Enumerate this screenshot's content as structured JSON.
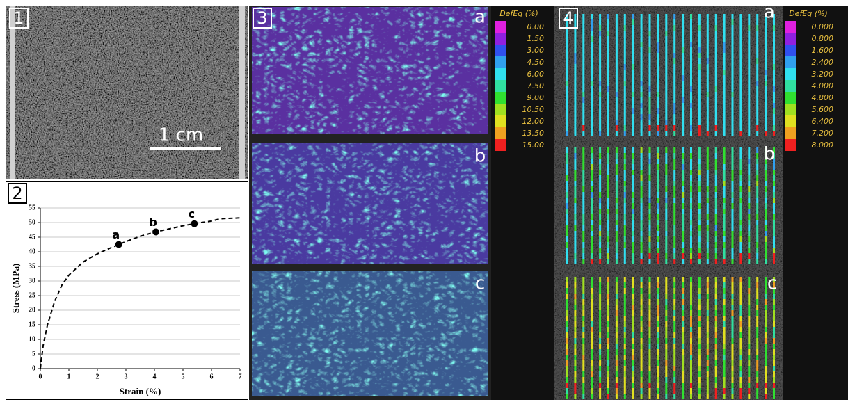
{
  "panel_labels": [
    "1",
    "2",
    "3",
    "4"
  ],
  "scale_bar": "1 cm",
  "panel3_labels": [
    "a",
    "b",
    "c"
  ],
  "panel4_labels": [
    "a",
    "b",
    "c"
  ],
  "legend3": {
    "title": "DefEq (%)",
    "entries": [
      {
        "label": "0.00",
        "color": "#e020e0"
      },
      {
        "label": "1.50",
        "color": "#9020e0"
      },
      {
        "label": "3.00",
        "color": "#3050f0"
      },
      {
        "label": "4.50",
        "color": "#30a0f0"
      },
      {
        "label": "6.00",
        "color": "#30e0f0"
      },
      {
        "label": "7.50",
        "color": "#30e0a0"
      },
      {
        "label": "9.00",
        "color": "#30e030"
      },
      {
        "label": "10.50",
        "color": "#a0e020"
      },
      {
        "label": "12.00",
        "color": "#e0e020"
      },
      {
        "label": "13.50",
        "color": "#f0a020"
      },
      {
        "label": "15.00",
        "color": "#f02020"
      }
    ]
  },
  "legend4": {
    "title": "DefEq (%)",
    "entries": [
      {
        "label": "0.000",
        "color": "#e020e0"
      },
      {
        "label": "0.800",
        "color": "#9020e0"
      },
      {
        "label": "1.600",
        "color": "#3050f0"
      },
      {
        "label": "2.400",
        "color": "#30a0f0"
      },
      {
        "label": "3.200",
        "color": "#30e0f0"
      },
      {
        "label": "4.000",
        "color": "#30e0a0"
      },
      {
        "label": "4.800",
        "color": "#30e030"
      },
      {
        "label": "5.600",
        "color": "#a0e020"
      },
      {
        "label": "6.400",
        "color": "#e0e020"
      },
      {
        "label": "7.200",
        "color": "#f0a020"
      },
      {
        "label": "8.000",
        "color": "#f02020"
      }
    ]
  },
  "chart_data": {
    "type": "line",
    "xlabel": "Strain (%)",
    "ylabel": "Stress (MPa)",
    "xlim": [
      0,
      7
    ],
    "ylim": [
      0,
      55
    ],
    "xticks": [
      0,
      1,
      2,
      3,
      4,
      5,
      6,
      7
    ],
    "yticks": [
      0,
      5,
      10,
      15,
      20,
      25,
      30,
      35,
      40,
      45,
      50,
      55
    ],
    "grid": true,
    "series": [
      {
        "color": "#000000",
        "style": "dashed",
        "x": [
          0,
          0.1,
          0.25,
          0.5,
          0.75,
          1,
          1.5,
          2,
          2.5,
          2.75,
          3,
          3.5,
          4,
          4.5,
          5,
          5.5,
          6,
          6.3,
          7
        ],
        "values": [
          0,
          8,
          15,
          23,
          28.5,
          32,
          36.5,
          39.3,
          41.5,
          42.5,
          43.5,
          45.3,
          46.7,
          47.8,
          48.9,
          49.8,
          50.5,
          51.3,
          51.6
        ]
      }
    ],
    "points": {
      "color": "#000000",
      "x": [
        2.75,
        4.05,
        5.4
      ],
      "values": [
        42.5,
        46.8,
        49.6
      ],
      "labels": [
        "a",
        "b",
        "c"
      ]
    }
  }
}
